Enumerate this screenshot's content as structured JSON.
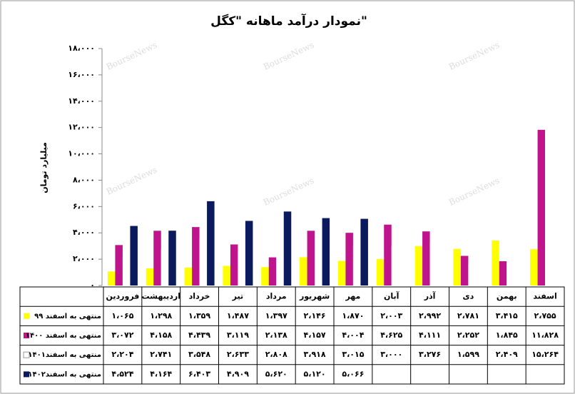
{
  "chart_data": {
    "type": "bar",
    "title": "نمودار درآمد ماهانه \"کگل\"",
    "y_label": "میلیارد تومان",
    "watermark": "BourseNews",
    "categories": [
      "فروردین",
      "اردیبهشت",
      "خرداد",
      "تیر",
      "مرداد",
      "شهریور",
      "مهر",
      "آبان",
      "آذر",
      "دی",
      "بهمن",
      "اسفند"
    ],
    "ylim": [
      0,
      18000
    ],
    "yticks": [
      {
        "value": 0,
        "label": "۰"
      },
      {
        "value": 2000,
        "label": "۲،۰۰۰"
      },
      {
        "value": 4000,
        "label": "۴،۰۰۰"
      },
      {
        "value": 6000,
        "label": "۶،۰۰۰"
      },
      {
        "value": 8000,
        "label": "۸،۰۰۰"
      },
      {
        "value": 10000,
        "label": "۱۰،۰۰۰"
      },
      {
        "value": 12000,
        "label": "۱۲،۰۰۰"
      },
      {
        "value": 14000,
        "label": "۱۴،۰۰۰"
      },
      {
        "value": 16000,
        "label": "۱۶،۰۰۰"
      },
      {
        "value": 18000,
        "label": "۱۸،۰۰۰"
      }
    ],
    "series": [
      {
        "name": "منتهی به اسفند ۹۹",
        "color": "#ffff00",
        "values": [
          1065,
          1298,
          1359,
          1487,
          1397,
          2146,
          1870,
          2003,
          2992,
          2781,
          3415,
          2755
        ],
        "value_labels": [
          "۱،۰۶۵",
          "۱،۲۹۸",
          "۱،۳۵۹",
          "۱،۴۸۷",
          "۱،۳۹۷",
          "۲،۱۴۶",
          "۱،۸۷۰",
          "۲،۰۰۳",
          "۲،۹۹۲",
          "۲،۷۸۱",
          "۳،۴۱۵",
          "۲،۷۵۵"
        ]
      },
      {
        "name": "منتهی به اسفند ۱۴۰۰",
        "color": "#c0148c",
        "values": [
          3072,
          4158,
          4439,
          3119,
          2138,
          4157,
          4004,
          4625,
          4111,
          2252,
          1845,
          11828
        ],
        "value_labels": [
          "۳،۰۷۲",
          "۴،۱۵۸",
          "۴،۴۳۹",
          "۳،۱۱۹",
          "۲،۱۳۸",
          "۴،۱۵۷",
          "۴،۰۰۴",
          "۴،۶۲۵",
          "۴،۱۱۱",
          "۲،۲۵۲",
          "۱،۸۴۵",
          "۱۱،۸۲۸"
        ]
      },
      {
        "name": "منتهی به اسفند۱۴۰۱",
        "color": "#ffffff",
        "values": [
          2204,
          2741,
          3548,
          2633,
          2808,
          3918,
          3015,
          3000,
          3276,
          1599,
          2409,
          15264
        ],
        "value_labels": [
          "۲،۲۰۴",
          "۲،۷۴۱",
          "۳،۵۴۸",
          "۲،۶۳۳",
          "۲،۸۰۸",
          "۳،۹۱۸",
          "۳،۰۱۵",
          "۳،۰۰۰",
          "۳،۲۷۶",
          "۱،۵۹۹",
          "۲،۴۰۹",
          "۱۵،۲۶۴"
        ]
      },
      {
        "name": "منتهی به اسفند۱۴۰۲",
        "color": "#0a1a5c",
        "values": [
          4524,
          4164,
          6403,
          4909,
          5620,
          5120,
          5066,
          null,
          null,
          null,
          null,
          null
        ],
        "value_labels": [
          "۴،۵۲۴",
          "۴،۱۶۴",
          "۶،۴۰۳",
          "۴،۹۰۹",
          "۵،۶۲۰",
          "۵،۱۲۰",
          "۵،۰۶۶",
          null,
          null,
          null,
          null,
          null
        ]
      }
    ]
  }
}
